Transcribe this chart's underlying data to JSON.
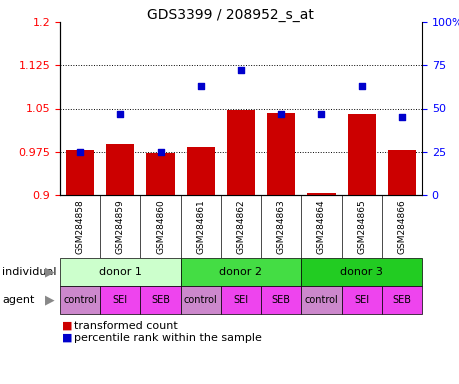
{
  "title": "GDS3399 / 208952_s_at",
  "samples": [
    "GSM284858",
    "GSM284859",
    "GSM284860",
    "GSM284861",
    "GSM284862",
    "GSM284863",
    "GSM284864",
    "GSM284865",
    "GSM284866"
  ],
  "bar_values": [
    0.978,
    0.988,
    0.972,
    0.983,
    1.048,
    1.042,
    0.904,
    1.04,
    0.978
  ],
  "scatter_percentiles": [
    25,
    47,
    25,
    63,
    72,
    47,
    47,
    63,
    45
  ],
  "bar_color": "#cc0000",
  "scatter_color": "#0000cc",
  "ylim_left": [
    0.9,
    1.2
  ],
  "ylim_right": [
    0,
    100
  ],
  "yticks_left": [
    0.9,
    0.975,
    1.05,
    1.125,
    1.2
  ],
  "yticks_right": [
    0,
    25,
    50,
    75,
    100
  ],
  "ytick_labels_left": [
    "0.9",
    "0.975",
    "1.05",
    "1.125",
    "1.2"
  ],
  "ytick_labels_right": [
    "0",
    "25",
    "50",
    "75",
    "100%"
  ],
  "hline_values": [
    0.975,
    1.05,
    1.125
  ],
  "donors": [
    {
      "label": "donor 1",
      "cols": [
        0,
        1,
        2
      ],
      "color": "#ccffcc"
    },
    {
      "label": "donor 2",
      "cols": [
        3,
        4,
        5
      ],
      "color": "#44dd44"
    },
    {
      "label": "donor 3",
      "cols": [
        6,
        7,
        8
      ],
      "color": "#22cc22"
    }
  ],
  "agents": [
    "control",
    "SEI",
    "SEB",
    "control",
    "SEI",
    "SEB",
    "control",
    "SEI",
    "SEB"
  ],
  "control_color": "#cc88cc",
  "sei_seb_color": "#ee44ee",
  "legend_bar_label": "transformed count",
  "legend_scatter_label": "percentile rank within the sample",
  "individual_label": "individual",
  "agent_label": "agent",
  "sample_bg_color": "#cccccc",
  "plot_bg_color": "#ffffff"
}
